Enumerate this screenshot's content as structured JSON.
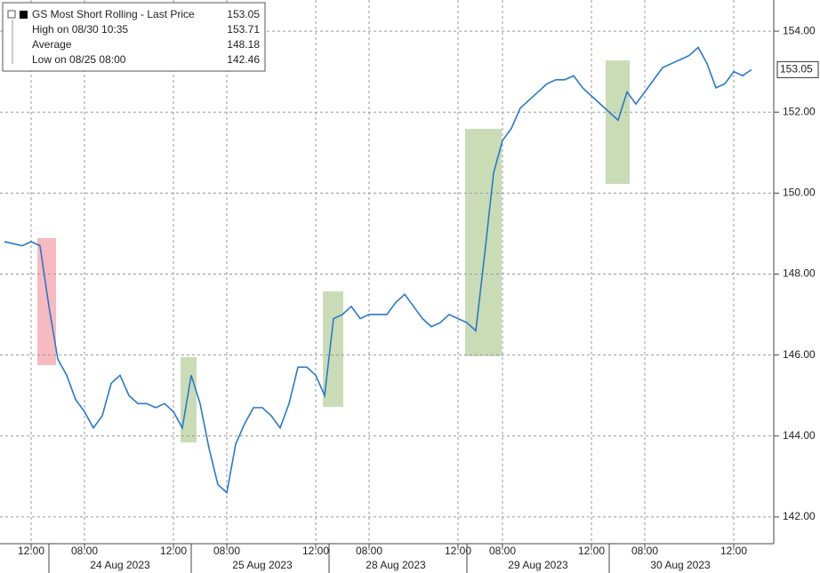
{
  "chart_data": {
    "type": "line",
    "series": [
      {
        "name": "GS Most Short Rolling - Last Price",
        "color": "#2a78cc",
        "values": [
          148.8,
          148.75,
          148.7,
          148.8,
          148.7,
          147.2,
          145.9,
          145.5,
          144.9,
          144.6,
          144.2,
          144.5,
          145.3,
          145.5,
          145.0,
          144.8,
          144.8,
          144.7,
          144.8,
          144.6,
          144.2,
          145.5,
          144.8,
          143.7,
          142.8,
          142.6,
          143.8,
          144.3,
          144.7,
          144.7,
          144.5,
          144.2,
          144.8,
          145.7,
          145.7,
          145.5,
          145.0,
          146.9,
          147.0,
          147.2,
          146.9,
          147.0,
          147.0,
          147.0,
          147.3,
          147.5,
          147.2,
          146.9,
          146.7,
          146.8,
          147.0,
          146.9,
          146.8,
          146.6,
          148.5,
          150.5,
          151.3,
          151.6,
          152.1,
          152.3,
          152.5,
          152.7,
          152.8,
          152.8,
          152.9,
          152.6,
          152.4,
          152.2,
          152.0,
          151.8,
          152.5,
          152.2,
          152.5,
          152.8,
          153.1,
          153.2,
          153.3,
          153.4,
          153.6,
          153.2,
          152.6,
          152.7,
          153.0,
          152.9,
          153.05
        ]
      }
    ],
    "categories": [
      null,
      null,
      null,
      "12:00",
      null,
      null,
      null,
      null,
      null,
      "08:00",
      null,
      null,
      null,
      null,
      null,
      null,
      null,
      null,
      null,
      "12:00",
      null,
      null,
      null,
      null,
      null,
      "08:00",
      null,
      null,
      null,
      null,
      null,
      null,
      null,
      null,
      null,
      "12:00",
      null,
      null,
      null,
      null,
      null,
      "08:00",
      null,
      null,
      null,
      null,
      null,
      null,
      null,
      null,
      null,
      "12:00",
      null,
      null,
      null,
      null,
      "08:00",
      null,
      null,
      null,
      null,
      null,
      null,
      null,
      null,
      null,
      "12:00",
      null,
      null,
      null,
      null,
      null,
      "08:00",
      null,
      null,
      null,
      null,
      null,
      null,
      null,
      null,
      null,
      "12:00",
      null,
      null
    ],
    "dates": [
      null,
      null,
      null,
      null,
      null,
      null,
      null,
      null,
      null,
      null,
      null,
      null,
      null,
      "24 Aug 2023",
      null,
      null,
      null,
      null,
      null,
      null,
      null,
      null,
      null,
      null,
      null,
      null,
      null,
      null,
      null,
      "25 Aug 2023",
      null,
      null,
      null,
      null,
      null,
      null,
      null,
      null,
      null,
      null,
      null,
      null,
      null,
      null,
      "28 Aug 2023",
      null,
      null,
      null,
      null,
      null,
      null,
      null,
      null,
      null,
      null,
      null,
      null,
      null,
      null,
      null,
      "29 Aug 2023",
      null,
      null,
      null,
      null,
      null,
      null,
      null,
      null,
      null,
      null,
      null,
      null,
      null,
      null,
      null,
      "30 Aug 2023",
      null,
      null,
      null,
      null,
      null,
      null,
      null,
      null
    ],
    "stats": [
      {
        "label": "High on 08/30 10:35",
        "value": 153.71
      },
      {
        "label": "Average",
        "value": 148.18
      },
      {
        "label": "Low on 08/25 08:00",
        "value": 142.46
      }
    ],
    "ylim": [
      141.34,
      154.77
    ],
    "yticks": [
      {
        "value": 142,
        "label": "142.00"
      },
      {
        "value": 144,
        "label": "144.00"
      },
      {
        "value": 146,
        "label": "146.00"
      },
      {
        "value": 148,
        "label": "148.00"
      },
      {
        "value": 150,
        "label": "150.00"
      },
      {
        "value": 152,
        "label": "152.00"
      },
      {
        "value": 154,
        "label": "154.00"
      }
    ],
    "grid": true
  }
}
